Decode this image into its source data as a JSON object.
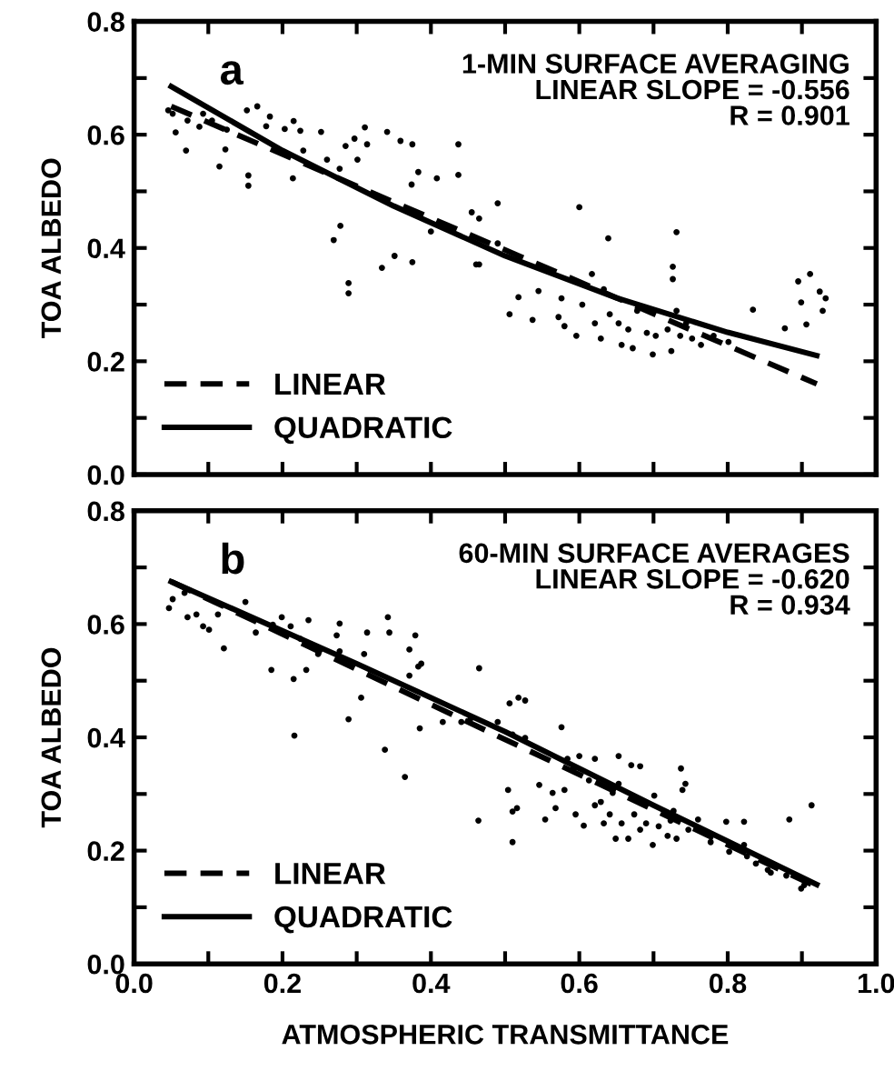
{
  "chart_data": [
    {
      "type": "scatter",
      "ylabel": "TOA ALBEDO",
      "annotations": [
        "a",
        "1-MIN SURFACE AVERAGING\nLINEAR SLOPE = -0.556\nR = 0.901"
      ],
      "series": [
        {
          "color": "#000000",
          "marker": "circle",
          "x": [
            0.046,
            0.052,
            0.056,
            0.07,
            0.072,
            0.088,
            0.093,
            0.105,
            0.115,
            0.123,
            0.125,
            0.152,
            0.154,
            0.154,
            0.166,
            0.178,
            0.183,
            0.203,
            0.214,
            0.215,
            0.224,
            0.228,
            0.252,
            0.26,
            0.277,
            0.269,
            0.278,
            0.289,
            0.289,
            0.285,
            0.297,
            0.301,
            0.311,
            0.314,
            0.334,
            0.341,
            0.351,
            0.359,
            0.374,
            0.375,
            0.375,
            0.383,
            0.4,
            0.408,
            0.437,
            0.437,
            0.455,
            0.465,
            0.49,
            0.465,
            0.49,
            0.461,
            0.506,
            0.518,
            0.537,
            0.545,
            0.572,
            0.576,
            0.58,
            0.596,
            0.6,
            0.604,
            0.617,
            0.621,
            0.629,
            0.633,
            0.639,
            0.641,
            0.653,
            0.657,
            0.666,
            0.672,
            0.678,
            0.691,
            0.699,
            0.703,
            0.719,
            0.724,
            0.726,
            0.726,
            0.731,
            0.731,
            0.736,
            0.744,
            0.752,
            0.764,
            0.781,
            0.801,
            0.834,
            0.877,
            0.895,
            0.906,
            0.911,
            0.899,
            0.924,
            0.928,
            0.932
          ],
          "values": [
            0.643,
            0.637,
            0.604,
            0.572,
            0.625,
            0.614,
            0.637,
            0.625,
            0.544,
            0.574,
            0.609,
            0.643,
            0.528,
            0.51,
            0.65,
            0.615,
            0.632,
            0.61,
            0.523,
            0.624,
            0.607,
            0.572,
            0.605,
            0.556,
            0.54,
            0.414,
            0.439,
            0.338,
            0.32,
            0.58,
            0.593,
            0.556,
            0.613,
            0.583,
            0.365,
            0.605,
            0.386,
            0.589,
            0.512,
            0.583,
            0.375,
            0.534,
            0.429,
            0.523,
            0.583,
            0.529,
            0.463,
            0.371,
            0.479,
            0.452,
            0.408,
            0.371,
            0.283,
            0.313,
            0.273,
            0.324,
            0.278,
            0.311,
            0.262,
            0.245,
            0.472,
            0.3,
            0.354,
            0.267,
            0.24,
            0.327,
            0.417,
            0.283,
            0.267,
            0.229,
            0.256,
            0.223,
            0.289,
            0.25,
            0.212,
            0.245,
            0.256,
            0.218,
            0.367,
            0.345,
            0.428,
            0.289,
            0.245,
            0.267,
            0.24,
            0.229,
            0.245,
            0.234,
            0.291,
            0.258,
            0.341,
            0.265,
            0.354,
            0.304,
            0.323,
            0.289,
            0.311
          ]
        },
        {
          "type": "line",
          "name": "LINEAR",
          "color": "#000000",
          "line_style": "dashed",
          "x": [
            0.05,
            0.92
          ],
          "values": [
            0.65,
            0.16
          ]
        },
        {
          "type": "line",
          "name": "QUADRATIC",
          "color": "#000000",
          "line_style": "solid",
          "x": [
            0.05,
            0.2,
            0.35,
            0.5,
            0.65,
            0.8,
            0.92
          ],
          "values": [
            0.685,
            0.572,
            0.474,
            0.386,
            0.312,
            0.251,
            0.21
          ]
        }
      ],
      "xlim": [
        0.0,
        1.0
      ],
      "xticks": [
        {
          "value": 0.0,
          "label": null
        },
        {
          "value": 0.1,
          "label": null
        },
        {
          "value": 0.2,
          "label": null
        },
        {
          "value": 0.3,
          "label": null
        },
        {
          "value": 0.4,
          "label": null
        },
        {
          "value": 0.5,
          "label": null
        },
        {
          "value": 0.6,
          "label": null
        },
        {
          "value": 0.7,
          "label": null
        },
        {
          "value": 0.8,
          "label": null
        },
        {
          "value": 0.9,
          "label": null
        },
        {
          "value": 1.0,
          "label": null
        }
      ],
      "ylim": [
        0.0,
        0.8
      ],
      "yticks": [
        {
          "value": 0.0,
          "label": "0.0"
        },
        {
          "value": 0.1,
          "label": null
        },
        {
          "value": 0.2,
          "label": "0.2"
        },
        {
          "value": 0.3,
          "label": null
        },
        {
          "value": 0.4,
          "label": "0.4"
        },
        {
          "value": 0.5,
          "label": null
        },
        {
          "value": 0.6,
          "label": "0.6"
        },
        {
          "value": 0.7,
          "label": null
        },
        {
          "value": 0.8,
          "label": "0.8"
        }
      ],
      "tick_labels": "y",
      "legend": "bottom left",
      "grid": false
    },
    {
      "type": "scatter",
      "ylabel": "TOA ALBEDO",
      "xlabel": "ATMOSPHERIC TRANSMITTANCE",
      "annotations": [
        "b",
        "60-MIN SURFACE AVERAGES\nLINEAR SLOPE = -0.620\nR = 0.934"
      ],
      "series": [
        {
          "color": "#000000",
          "marker": "circle",
          "x": [
            0.047,
            0.052,
            0.068,
            0.072,
            0.084,
            0.093,
            0.101,
            0.113,
            0.121,
            0.15,
            0.164,
            0.185,
            0.187,
            0.199,
            0.211,
            0.215,
            0.216,
            0.224,
            0.232,
            0.235,
            0.248,
            0.273,
            0.277,
            0.277,
            0.289,
            0.31,
            0.314,
            0.306,
            0.338,
            0.342,
            0.344,
            0.365,
            0.371,
            0.371,
            0.379,
            0.383,
            0.387,
            0.385,
            0.416,
            0.441,
            0.453,
            0.464,
            0.465,
            0.49,
            0.506,
            0.51,
            0.51,
            0.51,
            0.518,
            0.527,
            0.527,
            0.504,
            0.516,
            0.546,
            0.554,
            0.564,
            0.568,
            0.576,
            0.58,
            0.584,
            0.592,
            0.595,
            0.6,
            0.606,
            0.613,
            0.621,
            0.621,
            0.629,
            0.633,
            0.641,
            0.645,
            0.649,
            0.653,
            0.653,
            0.657,
            0.666,
            0.67,
            0.674,
            0.682,
            0.682,
            0.69,
            0.699,
            0.701,
            0.707,
            0.719,
            0.723,
            0.727,
            0.731,
            0.737,
            0.739,
            0.743,
            0.747,
            0.76,
            0.777,
            0.798,
            0.802,
            0.822,
            0.822,
            0.826,
            0.838,
            0.854,
            0.858,
            0.879,
            0.883,
            0.899,
            0.903,
            0.913
          ],
          "values": [
            0.628,
            0.644,
            0.655,
            0.612,
            0.617,
            0.596,
            0.59,
            0.617,
            0.557,
            0.639,
            0.585,
            0.519,
            0.599,
            0.612,
            0.596,
            0.503,
            0.403,
            0.574,
            0.519,
            0.607,
            0.547,
            0.58,
            0.601,
            0.552,
            0.432,
            0.547,
            0.585,
            0.47,
            0.378,
            0.612,
            0.585,
            0.33,
            0.509,
            0.555,
            0.58,
            0.525,
            0.53,
            0.416,
            0.427,
            0.427,
            0.432,
            0.253,
            0.522,
            0.427,
            0.46,
            0.405,
            0.215,
            0.269,
            0.47,
            0.465,
            0.399,
            0.307,
            0.275,
            0.316,
            0.255,
            0.302,
            0.275,
            0.418,
            0.307,
            0.362,
            0.345,
            0.264,
            0.367,
            0.244,
            0.324,
            0.28,
            0.362,
            0.286,
            0.248,
            0.264,
            0.302,
            0.221,
            0.367,
            0.318,
            0.248,
            0.221,
            0.351,
            0.264,
            0.349,
            0.237,
            0.248,
            0.21,
            0.297,
            0.243,
            0.226,
            0.253,
            0.27,
            0.221,
            0.345,
            0.307,
            0.318,
            0.237,
            0.255,
            0.215,
            0.251,
            0.198,
            0.251,
            0.21,
            0.19,
            0.177,
            0.166,
            0.161,
            0.156,
            0.255,
            0.133,
            0.139,
            0.28
          ]
        },
        {
          "type": "line",
          "name": "LINEAR",
          "color": "#000000",
          "line_style": "dashed",
          "x": [
            0.05,
            0.92
          ],
          "values": [
            0.675,
            0.136
          ]
        },
        {
          "type": "line",
          "name": "QUADRATIC",
          "color": "#000000",
          "line_style": "solid",
          "x": [
            0.05,
            0.3,
            0.5,
            0.7,
            0.92
          ],
          "values": [
            0.675,
            0.53,
            0.41,
            0.28,
            0.14
          ]
        }
      ],
      "xlim": [
        0.0,
        1.0
      ],
      "xticks": [
        {
          "value": 0.0,
          "label": "0.0"
        },
        {
          "value": 0.1,
          "label": null
        },
        {
          "value": 0.2,
          "label": "0.2"
        },
        {
          "value": 0.3,
          "label": null
        },
        {
          "value": 0.4,
          "label": "0.4"
        },
        {
          "value": 0.5,
          "label": null
        },
        {
          "value": 0.6,
          "label": "0.6"
        },
        {
          "value": 0.7,
          "label": null
        },
        {
          "value": 0.8,
          "label": "0.8"
        },
        {
          "value": 0.9,
          "label": null
        },
        {
          "value": 1.0,
          "label": "1.0"
        }
      ],
      "ylim": [
        0.0,
        0.8
      ],
      "yticks": [
        {
          "value": 0.0,
          "label": "0.0"
        },
        {
          "value": 0.1,
          "label": null
        },
        {
          "value": 0.2,
          "label": "0.2"
        },
        {
          "value": 0.3,
          "label": null
        },
        {
          "value": 0.4,
          "label": "0.4"
        },
        {
          "value": 0.5,
          "label": null
        },
        {
          "value": 0.6,
          "label": "0.6"
        },
        {
          "value": 0.7,
          "label": null
        },
        {
          "value": 0.8,
          "label": "0.8"
        }
      ],
      "legend": "bottom left",
      "grid": false
    }
  ]
}
